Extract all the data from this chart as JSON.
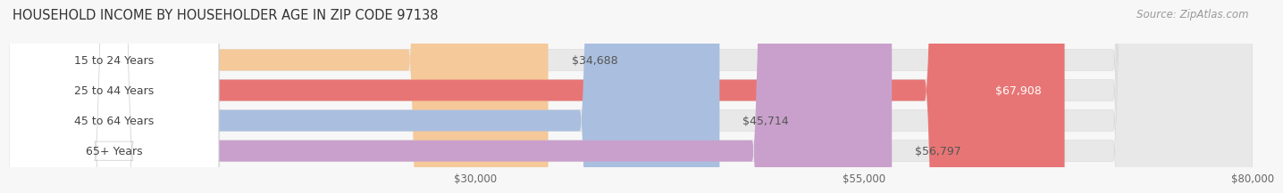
{
  "title": "HOUSEHOLD INCOME BY HOUSEHOLDER AGE IN ZIP CODE 97138",
  "source": "Source: ZipAtlas.com",
  "categories": [
    "15 to 24 Years",
    "25 to 44 Years",
    "45 to 64 Years",
    "65+ Years"
  ],
  "values": [
    34688,
    67908,
    45714,
    56797
  ],
  "bar_colors": [
    "#f5c99a",
    "#e87575",
    "#aabfdf",
    "#c9a0cc"
  ],
  "value_labels": [
    "$34,688",
    "$67,908",
    "$45,714",
    "$56,797"
  ],
  "xmin": 0,
  "xmax": 80000,
  "xticks": [
    30000,
    55000,
    80000
  ],
  "xtick_labels": [
    "$30,000",
    "$55,000",
    "$80,000"
  ],
  "bar_height": 0.7,
  "background_color": "#f7f7f7",
  "bar_bg_color": "#e8e8e8",
  "title_fontsize": 10.5,
  "source_fontsize": 8.5,
  "label_fontsize": 9,
  "value_fontsize": 9
}
